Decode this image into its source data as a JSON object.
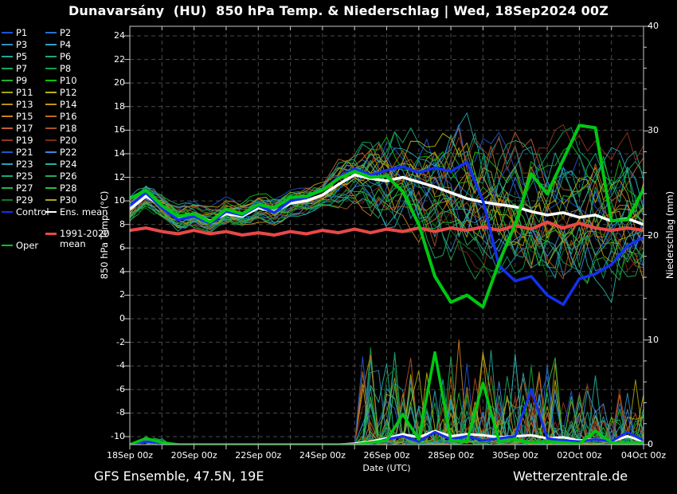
{
  "title": "Dunavarsány  (HU)  850 hPa Temp. & Niederschlag | Wed, 18Sep2024 00Z",
  "footer": {
    "left": "GFS Ensemble, 47.5N, 19E",
    "right": "Wetterzentrale.de"
  },
  "axes": {
    "left_label": "850 hPa Temp. (°C)",
    "right_label": "Niederschlag (mm)",
    "x_label": "Date (UTC)",
    "temp_ticks": [
      24,
      22,
      20,
      18,
      16,
      14,
      12,
      10,
      8,
      6,
      4,
      2,
      0,
      -2,
      -4,
      -6,
      -8,
      -10
    ],
    "precip_ticks": [
      40,
      30,
      20,
      10,
      0
    ],
    "precip_minor_step": 2,
    "date_ticks": [
      "18Sep 00z",
      "20Sep 00z",
      "22Sep 00z",
      "24Sep 00z",
      "26Sep 00z",
      "28Sep 00z",
      "30Sep 00z",
      "02Oct 00z",
      "04Oct 00z"
    ]
  },
  "legend": {
    "member_labels": [
      "P1",
      "P2",
      "P3",
      "P4",
      "P5",
      "P6",
      "P7",
      "P8",
      "P9",
      "P10",
      "P11",
      "P12",
      "P13",
      "P14",
      "P15",
      "P16",
      "P17",
      "P18",
      "P19",
      "P20",
      "P21",
      "P22",
      "P23",
      "P24",
      "P25",
      "P26",
      "P27",
      "P28",
      "P29",
      "P30"
    ],
    "control_label": "Control",
    "ens_mean_label": "Ens. mean",
    "climate_label_line1": "1991-2020",
    "climate_label_line2": "mean",
    "oper_label": "Oper"
  },
  "chart_data": {
    "type": "line",
    "title": "Dunavarsány (HU) 850 hPa Temp. & Niederschlag",
    "run": "Wed, 18Sep2024 00Z",
    "xlabel": "Date (UTC)",
    "ylabel_left": "850 hPa Temp. (°C)",
    "ylabel_right": "Niederschlag (mm)",
    "x_range_days": [
      0,
      16
    ],
    "x_step_days": 0.5,
    "ylim_left": [
      -10,
      24
    ],
    "ylim_right": [
      0,
      40
    ],
    "grid": "dashed, 1 day vertical, 2 °C horizontal",
    "colors": {
      "control": "#1430f0",
      "ens_mean": "#ffffff",
      "climate_mean": "#ea4848",
      "oper": "#00c813",
      "grid": "#4a4a4a",
      "frame": "#c8c8c8",
      "background": "#000000"
    },
    "series_temp": {
      "ens_mean": [
        9.3,
        10.4,
        9.6,
        8.6,
        8.8,
        8.3,
        8.9,
        8.7,
        9.4,
        9.1,
        9.8,
        10.0,
        10.5,
        11.4,
        12.2,
        11.9,
        11.7,
        12.0,
        11.6,
        11.2,
        10.7,
        10.2,
        9.9,
        9.7,
        9.5,
        9.1,
        8.8,
        9.0,
        8.6,
        8.8,
        8.3,
        8.5,
        8.0
      ],
      "control": [
        9.6,
        10.7,
        9.4,
        8.4,
        8.7,
        8.1,
        9.1,
        8.8,
        9.6,
        9.0,
        10.0,
        10.3,
        10.9,
        12.0,
        12.7,
        12.2,
        12.6,
        12.9,
        12.4,
        12.8,
        12.5,
        13.3,
        10.0,
        4.5,
        3.2,
        3.6,
        2.0,
        1.2,
        3.4,
        3.8,
        4.6,
        6.2,
        6.9
      ],
      "oper": [
        10.2,
        10.9,
        9.6,
        8.7,
        8.9,
        8.2,
        9.3,
        8.9,
        9.7,
        9.4,
        10.3,
        10.4,
        10.9,
        11.9,
        12.5,
        12.0,
        12.1,
        10.8,
        8.0,
        3.6,
        1.4,
        2.0,
        1.0,
        4.8,
        8.0,
        12.3,
        10.6,
        13.5,
        16.4,
        16.2,
        8.3,
        8.4,
        11.0
      ],
      "climate_mean": [
        7.5,
        7.7,
        7.4,
        7.2,
        7.5,
        7.2,
        7.4,
        7.1,
        7.3,
        7.1,
        7.4,
        7.2,
        7.5,
        7.3,
        7.6,
        7.3,
        7.6,
        7.4,
        7.7,
        7.4,
        7.7,
        7.5,
        7.8,
        7.5,
        7.9,
        7.6,
        8.2,
        7.7,
        8.1,
        7.7,
        7.5,
        7.7,
        7.5
      ]
    },
    "series_precip": {
      "ens_mean": [
        0,
        0.3,
        0.1,
        0,
        0,
        0,
        0,
        0,
        0,
        0,
        0,
        0,
        0,
        0,
        0.1,
        0.3,
        0.6,
        1.0,
        0.7,
        1.3,
        0.8,
        1.0,
        0.9,
        0.7,
        0.8,
        0.9,
        0.6,
        0.7,
        0.4,
        0.5,
        0.3,
        0.8,
        0.3
      ],
      "control": [
        0,
        0.3,
        0.1,
        0,
        0,
        0,
        0,
        0,
        0,
        0,
        0,
        0,
        0,
        0,
        0,
        0.1,
        0.5,
        0.8,
        0.3,
        1.2,
        0.5,
        0.8,
        0.4,
        0.6,
        0.8,
        5.3,
        0.6,
        0.4,
        0.3,
        0.5,
        0.3,
        1.2,
        0.4
      ],
      "oper": [
        0,
        0.6,
        0.2,
        0,
        0,
        0,
        0,
        0,
        0,
        0,
        0,
        0,
        0,
        0,
        0,
        0.2,
        0.4,
        2.9,
        0.5,
        8.8,
        0.4,
        0.3,
        5.9,
        0.3,
        0.5,
        0.2,
        0.3,
        0.2,
        0.1,
        1.3,
        0.2,
        0.1,
        0.2
      ]
    },
    "members": {
      "count": 30,
      "note": "30 perturbed ensemble members; tight cluster 8-12 °C until ~24Sep, spread ~0-19 °C afterwards; precip spikes up to ~12 mm after 25Sep",
      "seed": 12345,
      "spread_envelope_days": [
        0,
        6,
        8,
        10,
        16
      ],
      "spread_envelope_width": [
        0.9,
        0.9,
        3.5,
        5.0,
        5.0
      ],
      "precip_envelope_mm": {
        "before_day7": 1.0,
        "day7_to_13": 11.5,
        "after_day13": 7.5
      },
      "colors": [
        "#1d55d4",
        "#2b6fd4",
        "#2e8cc4",
        "#2aa3c8",
        "#21a89a",
        "#1ba878",
        "#16a65c",
        "#12a047",
        "#1fb12e",
        "#0cc20c",
        "#a4a414",
        "#b9b50a",
        "#b4911c",
        "#c59412",
        "#ca7f1f",
        "#c16d16",
        "#be602b",
        "#ac5025",
        "#903621",
        "#7e2a18",
        "#2157cc",
        "#3d86d6",
        "#29a1b5",
        "#24b09e",
        "#1da97c",
        "#22aa5d",
        "#2cb249",
        "#25c234",
        "#127a26",
        "#aea60f"
      ]
    }
  }
}
